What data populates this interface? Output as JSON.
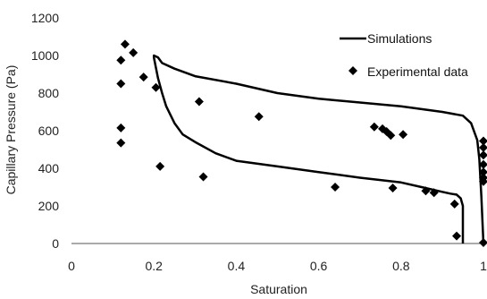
{
  "chart_data": {
    "type": "scatter",
    "xlabel": "Saturation",
    "ylabel": "Capillary Pressure (Pa)",
    "xlim": [
      0,
      1
    ],
    "ylim": [
      0,
      1200
    ],
    "x_ticks": [
      0,
      0.2,
      0.4,
      0.6,
      0.8,
      1
    ],
    "x_tick_labels": [
      "0",
      "0.2",
      "0.4",
      "0.6",
      "0.8",
      "1"
    ],
    "y_ticks": [
      0,
      200,
      400,
      600,
      800,
      1000,
      1200
    ],
    "y_tick_labels": [
      "0",
      "200",
      "400",
      "600",
      "800",
      "1000",
      "1200"
    ],
    "grid": false,
    "legend_position": "top-right",
    "series": [
      {
        "name": "Simulations",
        "kind": "line",
        "color": "#000000",
        "x": [
          0.95,
          0.95,
          0.95,
          0.945,
          0.935,
          0.92,
          0.9,
          0.85,
          0.8,
          0.7,
          0.6,
          0.5,
          0.4,
          0.35,
          0.3,
          0.27,
          0.25,
          0.23,
          0.22,
          0.21,
          0.2,
          0.2,
          0.2,
          0.21,
          0.22,
          0.25,
          0.3,
          0.4,
          0.5,
          0.6,
          0.7,
          0.8,
          0.9,
          0.95,
          0.97,
          0.985,
          0.99,
          0.995,
          1.0
        ],
        "y": [
          0,
          100,
          200,
          240,
          260,
          265,
          275,
          300,
          325,
          350,
          380,
          410,
          440,
          480,
          540,
          580,
          640,
          730,
          800,
          880,
          990,
          1000,
          1000,
          990,
          960,
          930,
          890,
          850,
          800,
          770,
          750,
          730,
          700,
          680,
          640,
          550,
          450,
          250,
          0
        ]
      },
      {
        "name": "Experimental data",
        "kind": "scatter",
        "color": "#000000",
        "x": [
          0.13,
          0.15,
          0.12,
          0.12,
          0.175,
          0.205,
          0.12,
          0.12,
          0.215,
          0.31,
          0.32,
          0.455,
          0.64,
          0.735,
          0.755,
          0.765,
          0.775,
          0.78,
          0.805,
          0.86,
          0.88,
          0.93,
          0.935,
          1.0,
          1.0,
          1.0,
          1.0,
          1.0,
          1.0,
          1.0,
          1.0
        ],
        "y": [
          1060,
          1015,
          975,
          850,
          885,
          830,
          615,
          535,
          410,
          755,
          355,
          675,
          300,
          620,
          610,
          595,
          575,
          295,
          580,
          280,
          270,
          210,
          40,
          545,
          510,
          470,
          420,
          380,
          350,
          330,
          5
        ]
      }
    ]
  }
}
